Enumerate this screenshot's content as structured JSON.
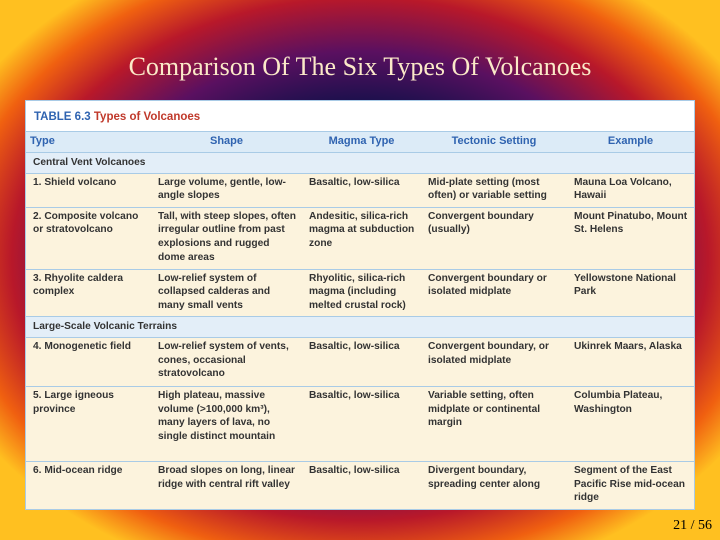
{
  "title": "Comparison Of The Six Types Of Volcanoes",
  "table": {
    "caption_label": "TABLE 6.3",
    "caption_title": "Types of Volcanoes",
    "headers": [
      "Type",
      "Shape",
      "Magma Type",
      "Tectonic Setting",
      "Example"
    ],
    "sections": [
      {
        "name": "Central Vent Volcanoes",
        "rows": [
          [
            "1. Shield volcano",
            "Large volume, gentle, low-angle slopes",
            "Basaltic, low-silica",
            "Mid-plate setting (most often) or variable setting",
            "Mauna Loa Volcano, Hawaii"
          ],
          [
            "2. Composite volcano or stratovolcano",
            "Tall, with steep slopes, often irregular outline from past explosions and rugged dome areas",
            "Andesitic, silica-rich magma at subduction zone",
            "Convergent boundary (usually)",
            "Mount Pinatubo, Mount St. Helens"
          ],
          [
            "3. Rhyolite caldera complex",
            "Low-relief system of collapsed calderas and many small vents",
            "Rhyolitic, silica-rich magma (including melted crustal rock)",
            "Convergent boundary or isolated midplate",
            "Yellowstone National Park"
          ]
        ]
      },
      {
        "name": "Large-Scale Volcanic Terrains",
        "rows": [
          [
            "4. Monogenetic field",
            "Low-relief system of vents, cones, occasional stratovolcano",
            "Basaltic, low-silica",
            "Convergent boundary, or isolated midplate",
            "Ukinrek Maars, Alaska"
          ],
          [
            "5. Large igneous province",
            "High plateau, massive volume (>100,000 km³), many layers of lava, no single distinct mountain",
            "Basaltic, low-silica",
            "Variable setting, often midplate or continental margin",
            "Columbia Plateau, Washington"
          ],
          [
            "6. Mid-ocean ridge",
            "Broad slopes on long, linear ridge with central rift valley",
            "Basaltic, low-silica",
            "Divergent boundary, spreading center along",
            "Segment of the East Pacific Rise mid-ocean ridge"
          ]
        ]
      }
    ]
  },
  "page_number": "21 / 56"
}
